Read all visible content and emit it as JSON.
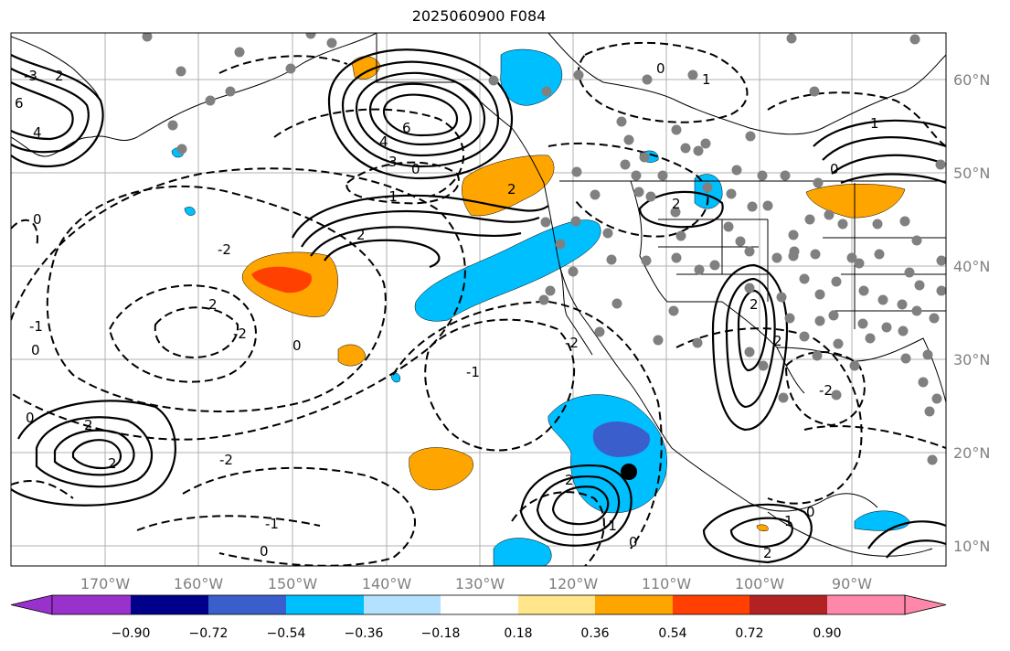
{
  "title": "2025060900 F084",
  "map": {
    "lon_labels": [
      "170°W",
      "160°W",
      "150°W",
      "140°W",
      "130°W",
      "120°W",
      "110°W",
      "100°W",
      "90°W"
    ],
    "lat_labels": [
      "60°N",
      "50°N",
      "40°N",
      "30°N",
      "20°N",
      "10°N"
    ],
    "contour_labels": [
      "0",
      "-1",
      "-2",
      "1",
      "2",
      "4",
      "6",
      "-3",
      "3"
    ],
    "marker": "storm-center"
  },
  "colorbar": {
    "labels": [
      "−0.90",
      "−0.72",
      "−0.54",
      "−0.36",
      "−0.18",
      "0.18",
      "0.36",
      "0.54",
      "0.72",
      "0.90"
    ],
    "colors": [
      "#9932cc",
      "#00008b",
      "#3a5fcd",
      "#00bfff",
      "#b2e2ff",
      "#ffffff",
      "#ffe68a",
      "#ffa500",
      "#ff4000",
      "#b22222",
      "#ff88aa"
    ]
  }
}
